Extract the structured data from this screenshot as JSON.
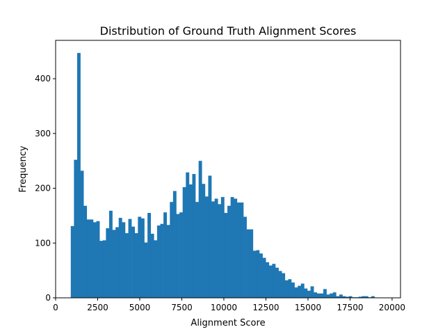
{
  "chart_data": {
    "type": "bar",
    "title": "Distribution of Ground Truth Alignment Scores",
    "xlabel": "Alignment Score",
    "ylabel": "Frequency",
    "xlim": [
      0,
      20500
    ],
    "ylim": [
      0,
      470
    ],
    "x_ticks": [
      0,
      2500,
      5000,
      7500,
      10000,
      12500,
      15000,
      17500,
      20000
    ],
    "x_tick_labels": [
      "0",
      "2500",
      "5000",
      "7500",
      "10000",
      "12500",
      "15000",
      "17500",
      "20000"
    ],
    "y_ticks": [
      0,
      100,
      200,
      300,
      400
    ],
    "y_tick_labels": [
      "0",
      "100",
      "200",
      "300",
      "400"
    ],
    "bar_color": "#1f77b4",
    "grid": false,
    "bins": {
      "start": 900,
      "width": 190,
      "values": [
        131,
        252,
        447,
        232,
        168,
        143,
        143,
        138,
        140,
        104,
        105,
        127,
        159,
        124,
        129,
        146,
        138,
        118,
        144,
        130,
        118,
        148,
        145,
        101,
        155,
        117,
        105,
        132,
        135,
        156,
        133,
        175,
        195,
        153,
        156,
        202,
        229,
        207,
        226,
        175,
        250,
        208,
        185,
        223,
        176,
        181,
        171,
        184,
        155,
        168,
        184,
        181,
        174,
        174,
        148,
        125,
        125,
        86,
        87,
        81,
        73,
        65,
        59,
        62,
        55,
        49,
        45,
        32,
        34,
        28,
        19,
        22,
        26,
        17,
        13,
        21,
        10,
        8,
        8,
        16,
        6,
        8,
        10,
        3,
        6,
        3,
        2,
        3,
        1,
        1,
        2,
        3,
        3,
        1,
        3
      ]
    }
  }
}
